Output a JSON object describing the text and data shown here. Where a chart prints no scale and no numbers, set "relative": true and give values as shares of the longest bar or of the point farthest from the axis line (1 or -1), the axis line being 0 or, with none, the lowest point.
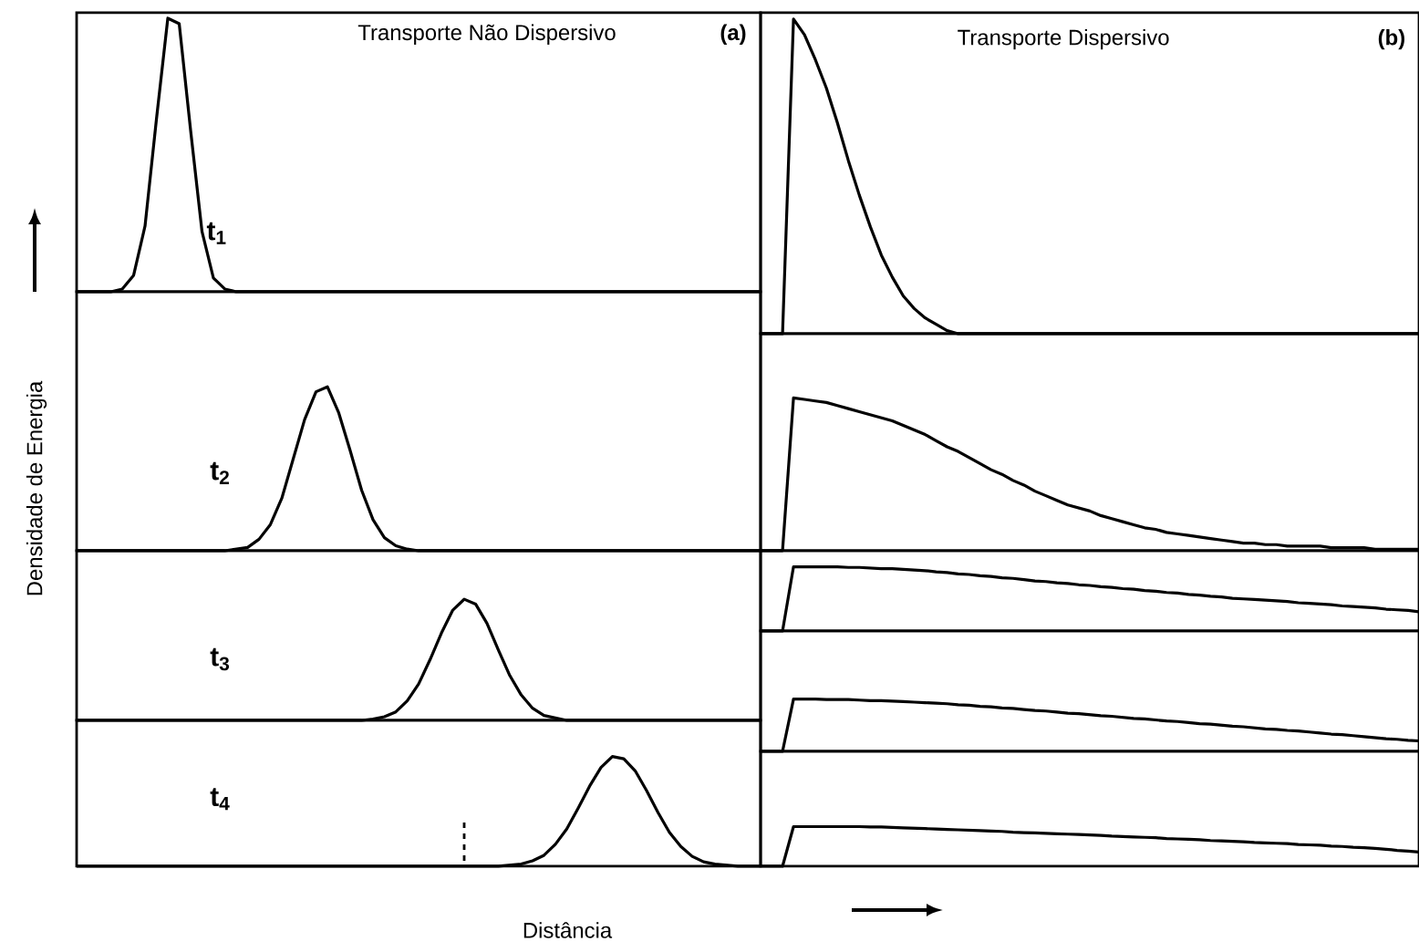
{
  "chart_data": [
    {
      "type": "line",
      "relative": true,
      "title": "Transporte Não Dispersivo",
      "annotations": [
        "(a)",
        "t$_{1}$"
      ],
      "tick_labels": false,
      "categories": [
        null,
        null,
        null,
        null,
        null,
        null,
        null,
        null,
        null,
        null,
        null,
        null,
        null,
        null,
        null,
        null,
        null,
        null,
        null,
        null,
        null,
        null,
        null,
        null,
        null,
        null,
        null,
        null,
        null,
        null,
        null,
        null,
        null,
        null,
        null,
        null,
        null,
        null,
        null,
        null,
        null,
        null,
        null,
        null,
        null,
        null,
        null,
        null,
        null,
        null,
        null,
        null,
        null,
        null,
        null,
        null,
        null,
        null,
        null,
        null,
        null
      ],
      "series": [
        {
          "color": "#000000",
          "values": [
            0,
            0,
            0,
            0,
            0.01,
            0.06,
            0.24,
            0.63,
            1,
            0.98,
            0.59,
            0.22,
            0.05,
            0.01,
            0,
            0,
            0,
            0,
            0,
            0,
            0,
            0,
            0,
            0,
            0,
            0,
            0,
            0,
            0,
            0,
            0,
            0,
            0,
            0,
            0,
            0,
            0,
            0,
            0,
            0,
            0,
            0,
            0,
            0,
            0,
            0,
            0,
            0,
            0,
            0,
            0,
            0,
            0,
            0,
            0,
            0,
            0,
            0,
            0,
            0,
            0
          ]
        }
      ]
    },
    {
      "type": "line",
      "relative": true,
      "ylabel": "Densidade de Energia",
      "annotations": [
        "t$_{2}$"
      ],
      "tick_labels": false,
      "categories": [
        null,
        null,
        null,
        null,
        null,
        null,
        null,
        null,
        null,
        null,
        null,
        null,
        null,
        null,
        null,
        null,
        null,
        null,
        null,
        null,
        null,
        null,
        null,
        null,
        null,
        null,
        null,
        null,
        null,
        null,
        null,
        null,
        null,
        null,
        null,
        null,
        null,
        null,
        null,
        null,
        null,
        null,
        null,
        null,
        null,
        null,
        null,
        null,
        null,
        null,
        null,
        null,
        null,
        null,
        null,
        null,
        null,
        null,
        null,
        null,
        null
      ],
      "series": [
        {
          "color": "#000000",
          "values": [
            0,
            0,
            0,
            0,
            0,
            0,
            0,
            0,
            0,
            0,
            0,
            0,
            0,
            0,
            0.01,
            0.02,
            0.07,
            0.16,
            0.32,
            0.56,
            0.8,
            0.97,
            1,
            0.84,
            0.61,
            0.37,
            0.19,
            0.08,
            0.03,
            0.01,
            0,
            0,
            0,
            0,
            0,
            0,
            0,
            0,
            0,
            0,
            0,
            0,
            0,
            0,
            0,
            0,
            0,
            0,
            0,
            0,
            0,
            0,
            0,
            0,
            0,
            0,
            0,
            0,
            0,
            0,
            0
          ]
        }
      ]
    },
    {
      "type": "line",
      "relative": true,
      "annotations": [
        "t$_{3}$"
      ],
      "tick_labels": false,
      "categories": [
        null,
        null,
        null,
        null,
        null,
        null,
        null,
        null,
        null,
        null,
        null,
        null,
        null,
        null,
        null,
        null,
        null,
        null,
        null,
        null,
        null,
        null,
        null,
        null,
        null,
        null,
        null,
        null,
        null,
        null,
        null,
        null,
        null,
        null,
        null,
        null,
        null,
        null,
        null,
        null,
        null,
        null,
        null,
        null,
        null,
        null,
        null,
        null,
        null,
        null,
        null,
        null,
        null,
        null,
        null,
        null,
        null,
        null,
        null,
        null,
        null
      ],
      "series": [
        {
          "color": "#000000",
          "values": [
            0,
            0,
            0,
            0,
            0,
            0,
            0,
            0,
            0,
            0,
            0,
            0,
            0,
            0,
            0,
            0,
            0,
            0,
            0,
            0,
            0,
            0,
            0,
            0,
            0,
            0,
            0.01,
            0.03,
            0.07,
            0.16,
            0.3,
            0.5,
            0.72,
            0.91,
            1,
            0.96,
            0.8,
            0.58,
            0.37,
            0.21,
            0.1,
            0.04,
            0.02,
            0,
            0,
            0,
            0,
            0,
            0,
            0,
            0,
            0,
            0,
            0,
            0,
            0,
            0,
            0,
            0,
            0,
            0
          ]
        }
      ]
    },
    {
      "type": "line",
      "relative": true,
      "xlabel": "Distância",
      "annotations": [
        "t$_{4}$"
      ],
      "tick_labels": false,
      "categories": [
        null,
        null,
        null,
        null,
        null,
        null,
        null,
        null,
        null,
        null,
        null,
        null,
        null,
        null,
        null,
        null,
        null,
        null,
        null,
        null,
        null,
        null,
        null,
        null,
        null,
        null,
        null,
        null,
        null,
        null,
        null,
        null,
        null,
        null,
        null,
        null,
        null,
        null,
        null,
        null,
        null,
        null,
        null,
        null,
        null,
        null,
        null,
        null,
        null,
        null,
        null,
        null,
        null,
        null,
        null,
        null,
        null,
        null,
        null,
        null,
        null
      ],
      "series": [
        {
          "color": "#000000",
          "values": [
            0,
            0,
            0,
            0,
            0,
            0,
            0,
            0,
            0,
            0,
            0,
            0,
            0,
            0,
            0,
            0,
            0,
            0,
            0,
            0,
            0,
            0,
            0,
            0,
            0,
            0,
            0,
            0,
            0,
            0,
            0,
            0,
            0,
            0,
            0,
            0,
            0,
            0,
            0.01,
            0.02,
            0.05,
            0.1,
            0.2,
            0.34,
            0.53,
            0.73,
            0.9,
            1,
            0.98,
            0.87,
            0.69,
            0.49,
            0.31,
            0.18,
            0.09,
            0.04,
            0.02,
            0.01,
            0,
            0,
            0
          ]
        }
      ]
    },
    {
      "type": "line",
      "relative": true,
      "title": "Transporte Dispersivo",
      "annotations": [
        "(b)"
      ],
      "tick_labels": false,
      "categories": [
        null,
        null,
        null,
        null,
        null,
        null,
        null,
        null,
        null,
        null,
        null,
        null,
        null,
        null,
        null,
        null,
        null,
        null,
        null,
        null,
        null,
        null,
        null,
        null,
        null,
        null,
        null,
        null,
        null,
        null,
        null,
        null,
        null,
        null,
        null,
        null,
        null,
        null,
        null,
        null,
        null,
        null,
        null,
        null,
        null,
        null,
        null,
        null,
        null,
        null,
        null,
        null,
        null,
        null,
        null,
        null,
        null,
        null,
        null,
        null,
        null
      ],
      "series": [
        {
          "color": "#000000",
          "values": [
            0,
            0,
            0,
            1,
            0.95,
            0.87,
            0.78,
            0.67,
            0.55,
            0.44,
            0.34,
            0.25,
            0.18,
            0.12,
            0.08,
            0.05,
            0.03,
            0.01,
            0,
            0,
            0,
            0,
            0,
            0,
            0,
            0,
            0,
            0,
            0,
            0,
            0,
            0,
            0,
            0,
            0,
            0,
            0,
            0,
            0,
            0,
            0,
            0,
            0,
            0,
            0,
            0,
            0,
            0,
            0,
            0,
            0,
            0,
            0,
            0,
            0,
            0,
            0,
            0,
            0,
            0,
            0
          ]
        }
      ]
    },
    {
      "type": "line",
      "relative": true,
      "tick_labels": false,
      "categories": [
        null,
        null,
        null,
        null,
        null,
        null,
        null,
        null,
        null,
        null,
        null,
        null,
        null,
        null,
        null,
        null,
        null,
        null,
        null,
        null,
        null,
        null,
        null,
        null,
        null,
        null,
        null,
        null,
        null,
        null,
        null,
        null,
        null,
        null,
        null,
        null,
        null,
        null,
        null,
        null,
        null,
        null,
        null,
        null,
        null,
        null,
        null,
        null,
        null,
        null,
        null,
        null,
        null,
        null,
        null,
        null,
        null,
        null,
        null,
        null,
        null
      ],
      "series": [
        {
          "color": "#000000",
          "values": [
            0,
            0,
            0,
            1,
            0.99,
            0.98,
            0.97,
            0.95,
            0.93,
            0.91,
            0.89,
            0.87,
            0.85,
            0.82,
            0.79,
            0.76,
            0.72,
            0.68,
            0.65,
            0.61,
            0.57,
            0.53,
            0.5,
            0.46,
            0.43,
            0.39,
            0.36,
            0.33,
            0.3,
            0.28,
            0.26,
            0.23,
            0.21,
            0.19,
            0.17,
            0.15,
            0.14,
            0.12,
            0.11,
            0.1,
            0.09,
            0.08,
            0.07,
            0.06,
            0.05,
            0.05,
            0.04,
            0.04,
            0.03,
            0.03,
            0.03,
            0.03,
            0.02,
            0.02,
            0.02,
            0.02,
            0.01,
            0.01,
            0.01,
            0.01,
            0.01
          ]
        }
      ]
    },
    {
      "type": "line",
      "relative": true,
      "tick_labels": false,
      "categories": [
        null,
        null,
        null,
        null,
        null,
        null,
        null,
        null,
        null,
        null,
        null,
        null,
        null,
        null,
        null,
        null,
        null,
        null,
        null,
        null,
        null,
        null,
        null,
        null,
        null,
        null,
        null,
        null,
        null,
        null,
        null,
        null,
        null,
        null,
        null,
        null,
        null,
        null,
        null,
        null,
        null,
        null,
        null,
        null,
        null,
        null,
        null,
        null,
        null,
        null,
        null,
        null,
        null,
        null,
        null,
        null,
        null,
        null,
        null,
        null,
        null
      ],
      "series": [
        {
          "color": "#000000",
          "values": [
            0,
            0,
            0,
            1,
            1,
            1,
            1,
            1,
            0.99,
            0.99,
            0.98,
            0.97,
            0.97,
            0.96,
            0.95,
            0.94,
            0.92,
            0.91,
            0.89,
            0.88,
            0.86,
            0.85,
            0.83,
            0.82,
            0.8,
            0.78,
            0.77,
            0.75,
            0.74,
            0.72,
            0.71,
            0.69,
            0.68,
            0.66,
            0.65,
            0.63,
            0.62,
            0.6,
            0.59,
            0.57,
            0.56,
            0.54,
            0.53,
            0.51,
            0.5,
            0.49,
            0.48,
            0.47,
            0.46,
            0.44,
            0.43,
            0.42,
            0.41,
            0.39,
            0.38,
            0.37,
            0.36,
            0.34,
            0.33,
            0.32,
            0.3
          ]
        }
      ]
    },
    {
      "type": "line",
      "relative": true,
      "tick_labels": false,
      "categories": [
        null,
        null,
        null,
        null,
        null,
        null,
        null,
        null,
        null,
        null,
        null,
        null,
        null,
        null,
        null,
        null,
        null,
        null,
        null,
        null,
        null,
        null,
        null,
        null,
        null,
        null,
        null,
        null,
        null,
        null,
        null,
        null,
        null,
        null,
        null,
        null,
        null,
        null,
        null,
        null,
        null,
        null,
        null,
        null,
        null,
        null,
        null,
        null,
        null,
        null,
        null,
        null,
        null,
        null,
        null,
        null,
        null,
        null,
        null,
        null,
        null
      ],
      "series": [
        {
          "color": "#000000",
          "values": [
            0,
            0,
            0,
            1,
            1,
            1,
            0.99,
            0.99,
            0.99,
            0.98,
            0.97,
            0.97,
            0.96,
            0.95,
            0.94,
            0.93,
            0.92,
            0.91,
            0.89,
            0.88,
            0.86,
            0.85,
            0.83,
            0.82,
            0.8,
            0.78,
            0.77,
            0.75,
            0.73,
            0.72,
            0.7,
            0.68,
            0.67,
            0.65,
            0.63,
            0.62,
            0.6,
            0.58,
            0.57,
            0.55,
            0.53,
            0.52,
            0.5,
            0.48,
            0.47,
            0.45,
            0.43,
            0.42,
            0.4,
            0.39,
            0.37,
            0.35,
            0.33,
            0.32,
            0.3,
            0.28,
            0.26,
            0.24,
            0.23,
            0.21,
            0.2
          ]
        }
      ]
    },
    {
      "type": "line",
      "relative": true,
      "tick_labels": false,
      "categories": [
        null,
        null,
        null,
        null,
        null,
        null,
        null,
        null,
        null,
        null,
        null,
        null,
        null,
        null,
        null,
        null,
        null,
        null,
        null,
        null,
        null,
        null,
        null,
        null,
        null,
        null,
        null,
        null,
        null,
        null,
        null,
        null,
        null,
        null,
        null,
        null,
        null,
        null,
        null,
        null,
        null,
        null,
        null,
        null,
        null,
        null,
        null,
        null,
        null,
        null,
        null,
        null,
        null,
        null,
        null,
        null,
        null,
        null,
        null,
        null,
        null
      ],
      "series": [
        {
          "color": "#000000",
          "values": [
            0,
            0,
            0,
            1,
            1,
            1,
            1,
            1,
            1,
            1,
            0.99,
            0.99,
            0.98,
            0.97,
            0.96,
            0.95,
            0.94,
            0.93,
            0.92,
            0.91,
            0.9,
            0.89,
            0.88,
            0.86,
            0.85,
            0.84,
            0.83,
            0.82,
            0.81,
            0.8,
            0.79,
            0.78,
            0.76,
            0.75,
            0.74,
            0.73,
            0.72,
            0.7,
            0.69,
            0.68,
            0.67,
            0.65,
            0.64,
            0.63,
            0.62,
            0.6,
            0.59,
            0.58,
            0.57,
            0.55,
            0.54,
            0.53,
            0.51,
            0.5,
            0.48,
            0.47,
            0.45,
            0.43,
            0.4,
            0.38,
            0.36
          ]
        }
      ]
    }
  ]
}
